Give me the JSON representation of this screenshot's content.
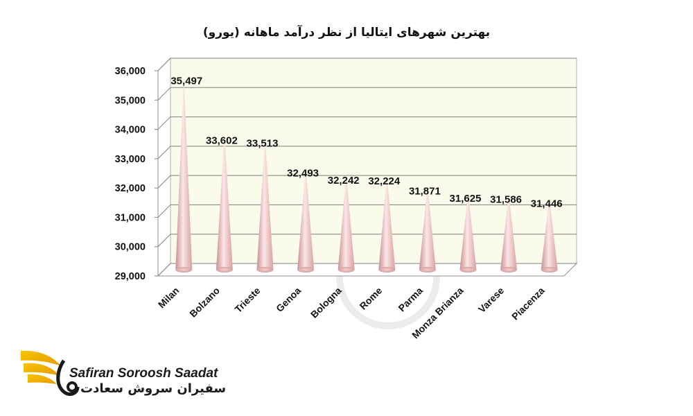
{
  "chart_data": {
    "type": "bar",
    "title": "بهترین شهرهای ایتالیا از نظر درآمد ماهانه (یورو)",
    "categories": [
      "Milan",
      "Bolzano",
      "Trieste",
      "Genoa",
      "Bologna",
      "Rome",
      "Parma",
      "Monza Brianza",
      "Varese",
      "Piacenza"
    ],
    "values": [
      35497,
      33602,
      33513,
      32493,
      32242,
      32224,
      31871,
      31625,
      31586,
      31446
    ],
    "value_labels": [
      "35,497",
      "33,602",
      "33,513",
      "32,493",
      "32,242",
      "32,224",
      "31,871",
      "31,625",
      "31,586",
      "31,446"
    ],
    "ylim": [
      29000,
      36000
    ],
    "yticks": [
      29000,
      30000,
      31000,
      32000,
      33000,
      34000,
      35000,
      36000
    ],
    "ytick_labels": [
      "29,000",
      "30,000",
      "31,000",
      "32,000",
      "33,000",
      "34,000",
      "35,000",
      "36,000"
    ],
    "grid": true,
    "bar_shape": "cone",
    "colors": {
      "cone": "#e8b4b4",
      "cone_dark": "#c98f8f",
      "cone_light": "#fbe6e6",
      "plot_bg": "#fbfbeb",
      "grid": "#808080"
    }
  },
  "logo": {
    "name_en": "Safiran Soroosh Saadat",
    "name_fa": "سفیران سروش سعادت",
    "accent_color": "#f2b705"
  }
}
